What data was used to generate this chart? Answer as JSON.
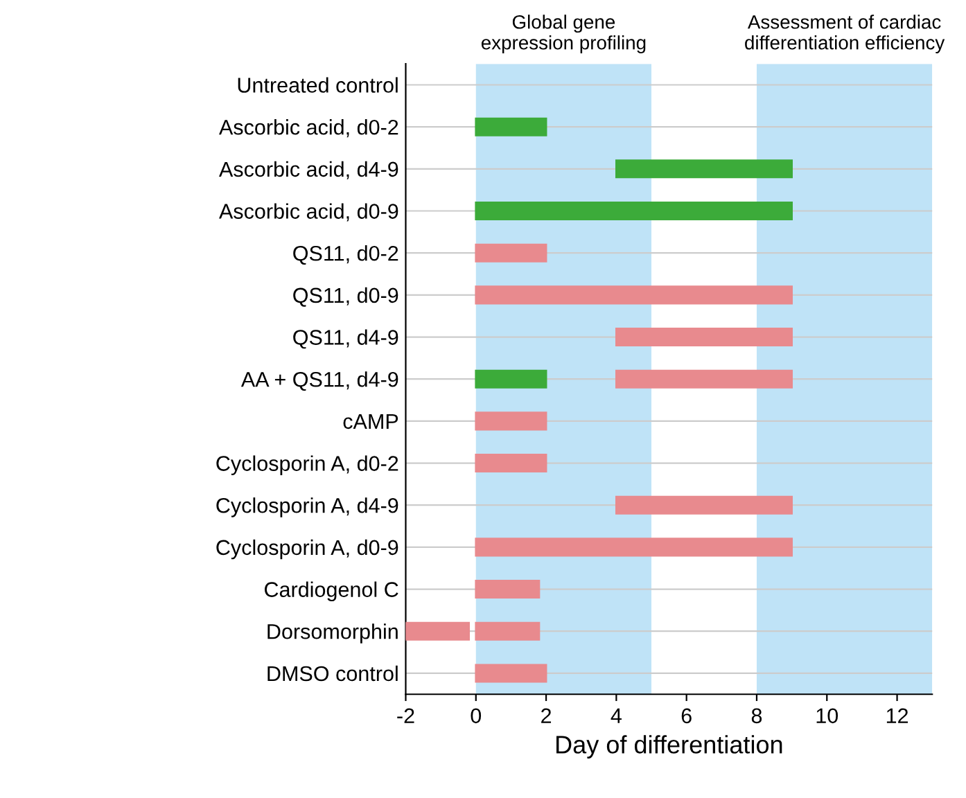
{
  "chart_data": {
    "type": "bar",
    "orientation": "horizontal",
    "xlabel": "Day of differentiation",
    "categories": [
      "Untreated control",
      "Ascorbic acid, d0-2",
      "Ascorbic acid, d4-9",
      "Ascorbic acid, d0-9",
      "QS11, d0-2",
      "QS11, d0-9",
      "QS11, d4-9",
      "AA + QS11, d4-9",
      "cAMP",
      "Cyclosporin A, d0-2",
      "Cyclosporin A, d4-9",
      "Cyclosporin A, d0-9",
      "Cardiogenol C",
      "Dorsomorphin",
      "DMSO control"
    ],
    "series": [
      {
        "base": [
          null,
          0,
          4,
          0,
          0,
          0,
          4,
          0,
          0,
          0,
          4,
          0,
          0,
          -2,
          0
        ],
        "values": [
          null,
          2,
          5,
          9,
          2,
          9,
          5,
          2,
          2,
          2,
          5,
          9,
          1.8,
          1.8,
          2
        ],
        "colors": [
          "#e88a8e",
          "#3cab3a",
          "#3cab3a",
          "#3cab3a",
          "#e88a8e",
          "#e88a8e",
          "#e88a8e",
          "#3cab3a",
          "#e88a8e",
          "#e88a8e",
          "#e88a8e",
          "#e88a8e",
          "#e88a8e",
          "#e88a8e",
          "#e88a8e"
        ]
      },
      {
        "base": [
          null,
          null,
          null,
          null,
          null,
          null,
          null,
          4,
          null,
          null,
          null,
          null,
          null,
          0,
          null
        ],
        "values": [
          null,
          null,
          null,
          null,
          null,
          null,
          null,
          5,
          null,
          null,
          null,
          null,
          null,
          1.8,
          null
        ],
        "colors": [
          "#e88a8e",
          "#e88a8e",
          "#e88a8e",
          "#e88a8e",
          "#e88a8e",
          "#e88a8e",
          "#e88a8e",
          "#e88a8e",
          "#e88a8e",
          "#e88a8e",
          "#e88a8e",
          "#e88a8e",
          "#e88a8e",
          "#e88a8e",
          "#e88a8e"
        ]
      }
    ],
    "xlim": [
      -2,
      13
    ],
    "xticks": [
      -2,
      0,
      2,
      4,
      6,
      8,
      10,
      12
    ],
    "grid": "y",
    "bands": [
      {
        "axis": "x",
        "from": 0,
        "to": 5,
        "label": "Global gene\nexpression profiling",
        "color": "#bfe3f7"
      },
      {
        "axis": "x",
        "from": 8,
        "to": 13,
        "label": "Assessment of cardiac\ndifferentiation efficiency",
        "color": "#bfe3f7"
      }
    ]
  }
}
